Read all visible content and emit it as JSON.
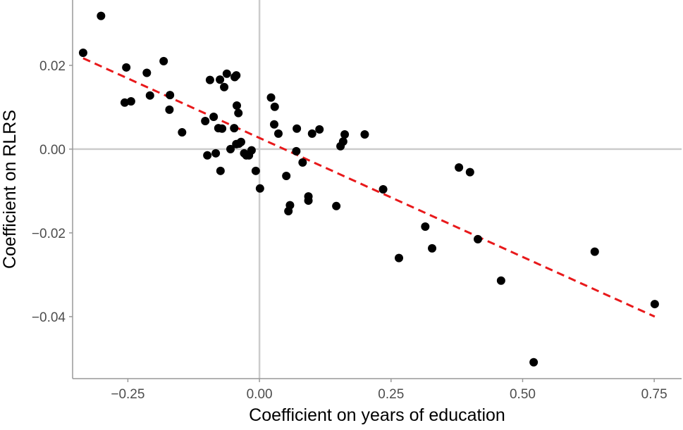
{
  "chart_data": {
    "type": "scatter",
    "title": "",
    "xlabel": "Coefficient on years of education",
    "ylabel": "Coefficient on RLRS",
    "xlim": [
      -0.355,
      0.802
    ],
    "ylim": [
      -0.0548,
      0.0356
    ],
    "xticks": [
      -0.25,
      0.0,
      0.25,
      0.5,
      0.75
    ],
    "xtick_labels": [
      "−0.25",
      "0.00",
      "0.25",
      "0.50",
      "0.75"
    ],
    "yticks": [
      0.02,
      0.0,
      -0.02,
      -0.04
    ],
    "ytick_labels": [
      "0.02",
      "0.00",
      "−0.02",
      "−0.04"
    ],
    "grid": false,
    "reference_lines": {
      "x": 0,
      "y": 0
    },
    "colors": {
      "points": "#000000",
      "fit_line": "#e8191b",
      "reference": "#cccccc",
      "axis": "#999999"
    },
    "fit_line": {
      "style": "dashed",
      "x": [
        -0.335,
        0.751
      ],
      "y": [
        0.0217,
        -0.04
      ]
    },
    "points": [
      [
        -0.335,
        0.023
      ],
      [
        -0.301,
        0.0318
      ],
      [
        -0.253,
        0.0195
      ],
      [
        -0.256,
        0.0111
      ],
      [
        -0.244,
        0.0114
      ],
      [
        -0.214,
        0.0182
      ],
      [
        -0.208,
        0.0128
      ],
      [
        -0.182,
        0.021
      ],
      [
        -0.17,
        0.0129
      ],
      [
        -0.171,
        0.0094
      ],
      [
        -0.147,
        0.004
      ],
      [
        -0.103,
        0.0067
      ],
      [
        -0.099,
        -0.0015
      ],
      [
        -0.094,
        0.0165
      ],
      [
        -0.087,
        0.0077
      ],
      [
        -0.083,
        -0.001
      ],
      [
        -0.078,
        0.005
      ],
      [
        -0.075,
        0.0166
      ],
      [
        -0.074,
        -0.0052
      ],
      [
        -0.071,
        0.0049
      ],
      [
        -0.067,
        0.0148
      ],
      [
        -0.062,
        0.018
      ],
      [
        -0.055,
        0.0
      ],
      [
        -0.047,
        0.0172
      ],
      [
        -0.044,
        0.0176
      ],
      [
        -0.048,
        0.005
      ],
      [
        -0.043,
        0.0104
      ],
      [
        -0.04,
        0.0086
      ],
      [
        -0.044,
        0.0012
      ],
      [
        -0.039,
        0.0013
      ],
      [
        -0.035,
        0.0017
      ],
      [
        -0.029,
        -0.001
      ],
      [
        -0.025,
        -0.0015
      ],
      [
        -0.02,
        -0.0015
      ],
      [
        -0.015,
        -0.0003
      ],
      [
        -0.007,
        -0.0052
      ],
      [
        0.001,
        -0.0094
      ],
      [
        0.022,
        0.0123
      ],
      [
        0.029,
        0.0101
      ],
      [
        0.028,
        0.0059
      ],
      [
        0.036,
        0.0037
      ],
      [
        0.051,
        -0.0064
      ],
      [
        0.055,
        -0.0148
      ],
      [
        0.058,
        -0.0134
      ],
      [
        0.07,
        -0.0005
      ],
      [
        0.071,
        0.0049
      ],
      [
        0.082,
        -0.0032
      ],
      [
        0.093,
        -0.0113
      ],
      [
        0.093,
        -0.0123
      ],
      [
        0.1,
        0.0037
      ],
      [
        0.114,
        0.0047
      ],
      [
        0.146,
        -0.0136
      ],
      [
        0.154,
        0.0007
      ],
      [
        0.159,
        0.0018
      ],
      [
        0.162,
        0.0035
      ],
      [
        0.2,
        0.0035
      ],
      [
        0.235,
        -0.0096
      ],
      [
        0.265,
        -0.026
      ],
      [
        0.315,
        -0.0185
      ],
      [
        0.328,
        -0.0237
      ],
      [
        0.379,
        -0.0044
      ],
      [
        0.4,
        -0.0055
      ],
      [
        0.415,
        -0.0215
      ],
      [
        0.459,
        -0.0314
      ],
      [
        0.521,
        -0.0509
      ],
      [
        0.637,
        -0.0245
      ],
      [
        0.751,
        -0.037
      ]
    ]
  }
}
